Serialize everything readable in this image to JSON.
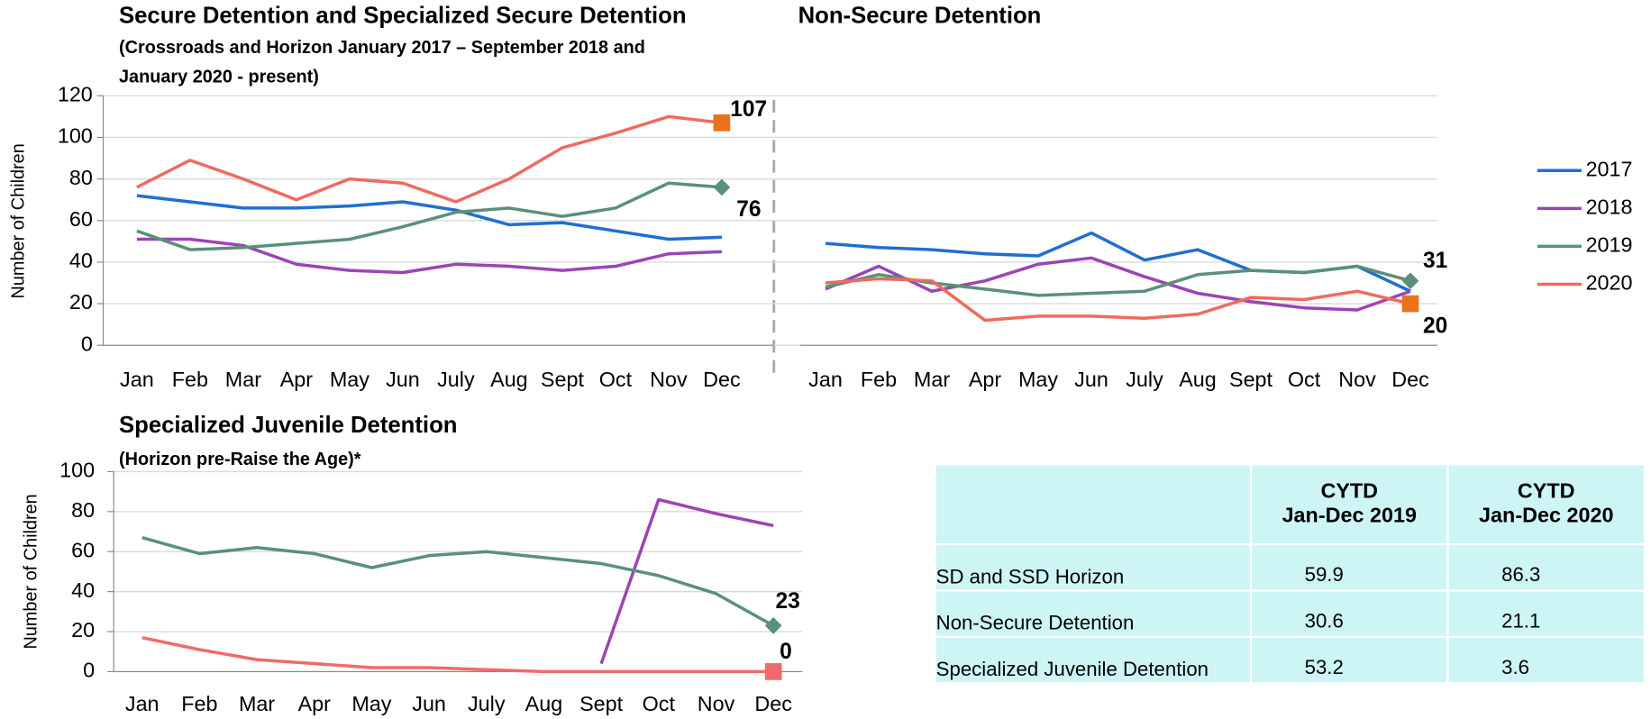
{
  "chart_data": [
    {
      "type": "line",
      "title": "Secure Detention and Specialized Secure Detention",
      "subtitle": [
        "(Crossroads and Horizon January  2017 – September 2018 and",
        "January 2020 - present)"
      ],
      "y_label": "Number of Children",
      "categories": [
        "Jan",
        "Feb",
        "Mar",
        "Apr",
        "May",
        "Jun",
        "July",
        "Aug",
        "Sept",
        "Oct",
        "Nov",
        "Dec"
      ],
      "ylim": [
        0,
        120
      ],
      "yticks": [
        0,
        20,
        40,
        60,
        80,
        100,
        120
      ],
      "grid": true,
      "series": [
        {
          "name": "2017",
          "color": "#1f6fd1",
          "values": [
            72,
            69,
            66,
            66,
            67,
            69,
            65,
            58,
            59,
            55,
            51,
            52
          ]
        },
        {
          "name": "2018",
          "color": "#9b45b5",
          "values": [
            51,
            51,
            48,
            39,
            36,
            35,
            39,
            38,
            36,
            38,
            44,
            45
          ]
        },
        {
          "name": "2019",
          "color": "#5a9178",
          "values": [
            55,
            46,
            47,
            49,
            51,
            57,
            64,
            66,
            62,
            66,
            78,
            76
          ],
          "value_labels": [
            null,
            null,
            null,
            null,
            null,
            null,
            null,
            null,
            null,
            null,
            null,
            "76"
          ],
          "marker": "diamond",
          "marker_color": "#5a9178"
        },
        {
          "name": "2020",
          "color": "#f06a5e",
          "values": [
            76,
            89,
            80,
            70,
            80,
            78,
            69,
            80,
            95,
            102,
            110,
            107
          ],
          "value_labels": [
            null,
            null,
            null,
            null,
            null,
            null,
            null,
            null,
            null,
            null,
            null,
            "107"
          ],
          "marker": "square",
          "marker_color": "#e8731a"
        }
      ]
    },
    {
      "type": "line",
      "title": "Non-Secure Detention",
      "categories": [
        "Jan",
        "Feb",
        "Mar",
        "Apr",
        "May",
        "Jun",
        "July",
        "Aug",
        "Sept",
        "Oct",
        "Nov",
        "Dec"
      ],
      "ylim": [
        0,
        120
      ],
      "series": [
        {
          "color": "#1f6fd1",
          "values": [
            49,
            47,
            46,
            44,
            43,
            54,
            41,
            46,
            36,
            35,
            38,
            26
          ]
        },
        {
          "color": "#9b45b5",
          "values": [
            27,
            38,
            26,
            31,
            39,
            42,
            33,
            25,
            21,
            18,
            17,
            26
          ]
        },
        {
          "color": "#5a9178",
          "values": [
            28,
            34,
            30,
            27,
            24,
            25,
            26,
            34,
            36,
            35,
            38,
            31
          ],
          "value_labels": [
            null,
            null,
            null,
            null,
            null,
            null,
            null,
            null,
            null,
            null,
            null,
            "31"
          ],
          "marker": "diamond",
          "marker_color": "#5a9178"
        },
        {
          "color": "#f06a5e",
          "values": [
            30,
            32,
            31,
            12,
            14,
            14,
            13,
            15,
            23,
            22,
            26,
            20
          ],
          "value_labels": [
            null,
            null,
            null,
            null,
            null,
            null,
            null,
            null,
            null,
            null,
            null,
            "20"
          ],
          "marker": "square",
          "marker_color": "#e8731a"
        }
      ]
    },
    {
      "type": "line",
      "title": "Specialized Juvenile Detention",
      "subtitle": [
        "(Horizon pre-Raise the Age)*"
      ],
      "y_label": "Number of Children",
      "categories": [
        "Jan",
        "Feb",
        "Mar",
        "Apr",
        "May",
        "Jun",
        "July",
        "Aug",
        "Sept",
        "Oct",
        "Nov",
        "Dec"
      ],
      "ylim": [
        0,
        100
      ],
      "yticks": [
        0,
        20,
        40,
        60,
        80,
        100
      ],
      "grid": true,
      "series": [
        {
          "color": "#9b45b5",
          "values": [
            null,
            null,
            null,
            null,
            null,
            null,
            null,
            null,
            4,
            86,
            79,
            73
          ]
        },
        {
          "color": "#5a9178",
          "values": [
            67,
            59,
            62,
            59,
            52,
            58,
            60,
            57,
            54,
            48,
            39,
            23
          ],
          "value_labels": [
            null,
            null,
            null,
            null,
            null,
            null,
            null,
            null,
            null,
            null,
            null,
            "23"
          ],
          "marker": "diamond",
          "marker_color": "#5a9178"
        },
        {
          "color": "#f06a6a",
          "values": [
            17,
            11,
            6,
            4,
            2,
            2,
            1,
            0,
            0,
            0,
            0,
            0
          ],
          "value_labels": [
            null,
            null,
            null,
            null,
            null,
            null,
            null,
            null,
            null,
            null,
            null,
            "0"
          ],
          "marker": "square",
          "marker_color": "#f06a6a"
        }
      ]
    }
  ],
  "table": {
    "header": [
      "",
      "CYTD\nJan-Dec 2019",
      "CYTD\nJan-Dec 2020"
    ],
    "rows": [
      [
        "SD and SSD Horizon",
        "59.9",
        "86.3"
      ],
      [
        "Non-Secure Detention",
        "30.6",
        "21.1"
      ],
      [
        "Specialized Juvenile Detention",
        "53.2",
        "3.6"
      ]
    ]
  }
}
